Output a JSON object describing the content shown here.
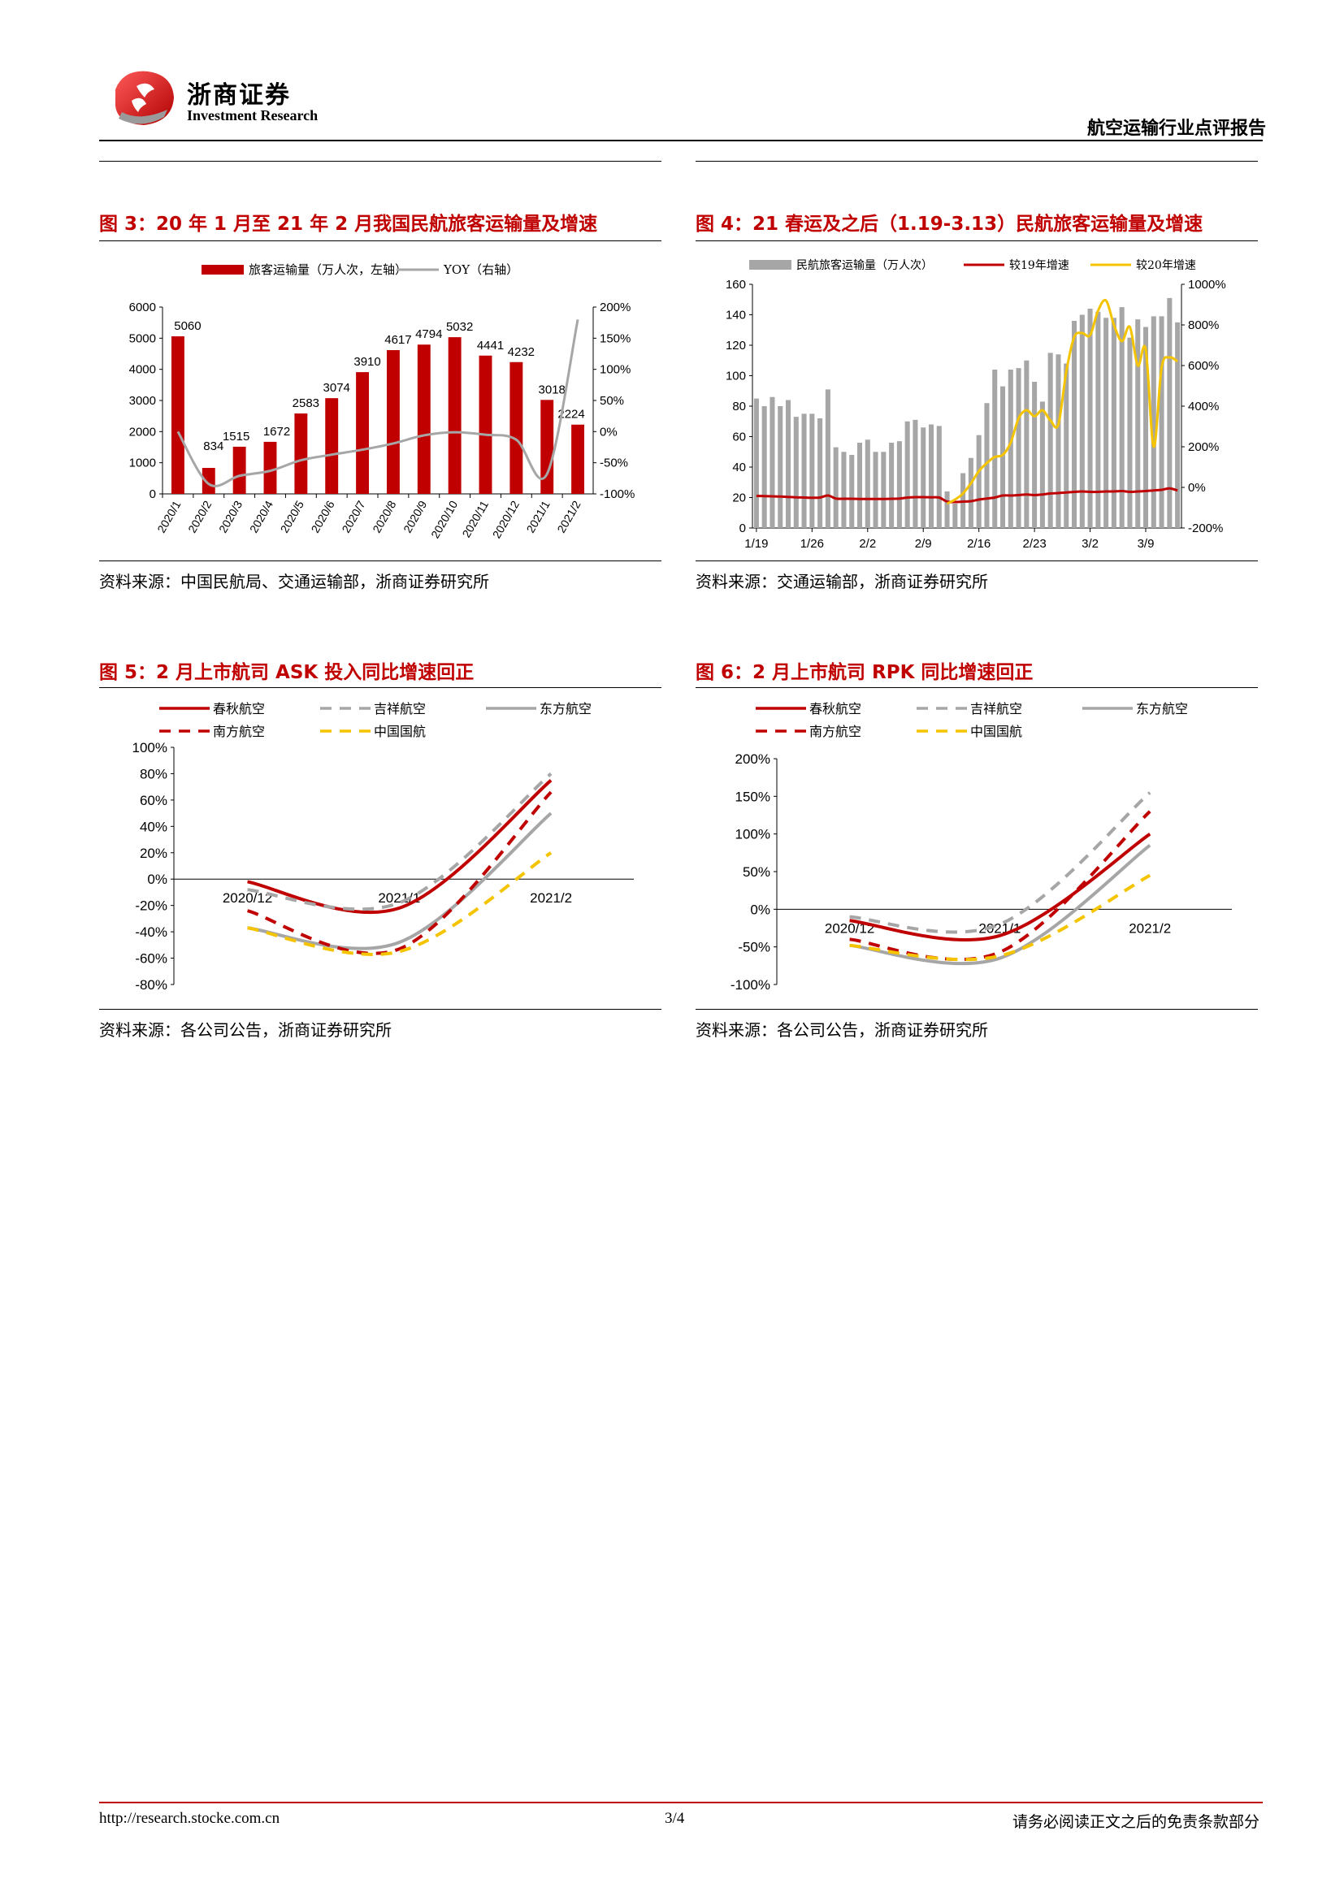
{
  "header": {
    "logo_cn": "浙商证券",
    "logo_en": "Investment Research",
    "report_title": "航空运输行业点评报告"
  },
  "figures": {
    "fig3": {
      "title": "图 3：20 年 1 月至 21 年 2 月我国民航旅客运输量及增速",
      "source": "资料来源：中国民航局、交通运输部，浙商证券研究所"
    },
    "fig4": {
      "title": "图 4：21 春运及之后（1.19-3.13）民航旅客运输量及增速",
      "source": "资料来源：交通运输部，浙商证券研究所"
    },
    "fig5": {
      "title": "图 5：2 月上市航司 ASK 投入同比增速回正",
      "source": "资料来源：各公司公告，浙商证券研究所"
    },
    "fig6": {
      "title": "图 6：2 月上市航司 RPK 同比增速回正",
      "source": "资料来源：各公司公告，浙商证券研究所"
    }
  },
  "footer": {
    "url": "http://research.stocke.com.cn",
    "page": "3/4",
    "disclaimer": "请务必阅读正文之后的免责条款部分"
  },
  "colors": {
    "red": "#c00000",
    "gray": "#a6a6a6",
    "yellow": "#f5c400",
    "darkred": "#c00000"
  },
  "chart_data": [
    {
      "id": "fig3",
      "type": "bar",
      "categories": [
        "2020/1",
        "2020/2",
        "2020/3",
        "2020/4",
        "2020/5",
        "2020/6",
        "2020/7",
        "2020/8",
        "2020/9",
        "2020/10",
        "2020/11",
        "2020/12",
        "2021/1",
        "2021/2"
      ],
      "series": [
        {
          "name": "旅客运输量（万人次，左轴）",
          "type": "bar",
          "axis": "left",
          "values": [
            5060,
            834,
            1515,
            1672,
            2583,
            3074,
            3910,
            4617,
            4794,
            5032,
            4441,
            4232,
            3018,
            2224
          ]
        },
        {
          "name": "YOY（右轴）",
          "type": "line",
          "axis": "right",
          "values": [
            0,
            -84,
            -71,
            -63,
            -46,
            -37,
            -29,
            -19,
            -6,
            -1,
            -5,
            -13,
            -68,
            180
          ]
        }
      ],
      "ylim_left": [
        0,
        6000
      ],
      "yticks_left": [
        0,
        1000,
        2000,
        3000,
        4000,
        5000,
        6000
      ],
      "ylim_right": [
        -100,
        200
      ],
      "yticks_right": [
        "-100%",
        "-50%",
        "0%",
        "50%",
        "100%",
        "150%",
        "200%"
      ]
    },
    {
      "id": "fig4",
      "type": "bar",
      "x_ticks": [
        "1/19",
        "1/26",
        "2/2",
        "2/9",
        "2/16",
        "2/23",
        "3/2",
        "3/9"
      ],
      "series": [
        {
          "name": "民航旅客运输量（万人次）",
          "type": "bar",
          "axis": "left",
          "values": [
            85,
            80,
            86,
            80,
            84,
            73,
            75,
            75,
            72,
            91,
            53,
            50,
            48,
            56,
            58,
            50,
            50,
            56,
            57,
            70,
            71,
            66,
            68,
            67,
            24,
            16,
            36,
            46,
            61,
            82,
            104,
            93,
            104,
            105,
            110,
            96,
            83,
            115,
            114,
            108,
            136,
            140,
            144,
            142,
            138,
            138,
            145,
            125,
            137,
            132,
            139,
            139,
            151,
            135
          ]
        },
        {
          "name": "较19年增速",
          "type": "line",
          "axis": "right",
          "values": [
            -42,
            -43,
            -44,
            -45,
            -47,
            -49,
            -50,
            -51,
            -50,
            -40,
            -55,
            -56,
            -56,
            -57,
            -57,
            -57,
            -57,
            -56,
            -55,
            -50,
            -48,
            -48,
            -49,
            -50,
            -70,
            -72,
            -70,
            -68,
            -60,
            -55,
            -50,
            -40,
            -40,
            -38,
            -35,
            -38,
            -35,
            -30,
            -28,
            -25,
            -22,
            -20,
            -22,
            -22,
            -20,
            -20,
            -18,
            -22,
            -20,
            -18,
            -15,
            -12,
            -5,
            -15
          ]
        },
        {
          "name": "较20年增速",
          "type": "line",
          "axis": "right",
          "values": [
            null,
            null,
            null,
            null,
            null,
            null,
            null,
            null,
            null,
            null,
            null,
            null,
            null,
            null,
            null,
            null,
            null,
            null,
            null,
            null,
            null,
            null,
            null,
            null,
            -80,
            -60,
            -30,
            20,
            80,
            120,
            150,
            160,
            220,
            340,
            380,
            350,
            380,
            330,
            310,
            570,
            740,
            760,
            750,
            870,
            920,
            800,
            720,
            790,
            600,
            680,
            200,
            590,
            640,
            620
          ]
        }
      ],
      "ylim_left": [
        0,
        160
      ],
      "yticks_left": [
        0,
        20,
        40,
        60,
        80,
        100,
        120,
        140,
        160
      ],
      "ylim_right": [
        -200,
        1000
      ],
      "yticks_right": [
        "-200%",
        "0%",
        "200%",
        "400%",
        "600%",
        "800%",
        "1000%"
      ]
    },
    {
      "id": "fig5",
      "type": "line",
      "categories": [
        "2020/12",
        "2021/1",
        "2021/2"
      ],
      "series": [
        {
          "name": "春秋航空",
          "values": [
            -2,
            -22,
            75
          ]
        },
        {
          "name": "吉祥航空",
          "values": [
            -8,
            -18,
            80
          ]
        },
        {
          "name": "东方航空",
          "values": [
            -37,
            -48,
            50
          ]
        },
        {
          "name": "南方航空",
          "values": [
            -24,
            -53,
            66
          ]
        },
        {
          "name": "中国国航",
          "values": [
            -37,
            -55,
            20
          ]
        }
      ],
      "ylim": [
        -80,
        100
      ],
      "yticks": [
        "-80%",
        "-60%",
        "-40%",
        "-20%",
        "0%",
        "20%",
        "40%",
        "60%",
        "80%",
        "100%"
      ]
    },
    {
      "id": "fig6",
      "type": "line",
      "categories": [
        "2020/12",
        "2021/1",
        "2021/2"
      ],
      "series": [
        {
          "name": "春秋航空",
          "values": [
            -15,
            -35,
            100
          ]
        },
        {
          "name": "吉祥航空",
          "values": [
            -10,
            -20,
            155
          ]
        },
        {
          "name": "东方航空",
          "values": [
            -48,
            -65,
            85
          ]
        },
        {
          "name": "南方航空",
          "values": [
            -40,
            -57,
            130
          ]
        },
        {
          "name": "中国国航",
          "values": [
            -48,
            -62,
            45
          ]
        }
      ],
      "ylim": [
        -100,
        200
      ],
      "yticks": [
        "-100%",
        "-50%",
        "0%",
        "50%",
        "100%",
        "150%",
        "200%"
      ]
    }
  ]
}
